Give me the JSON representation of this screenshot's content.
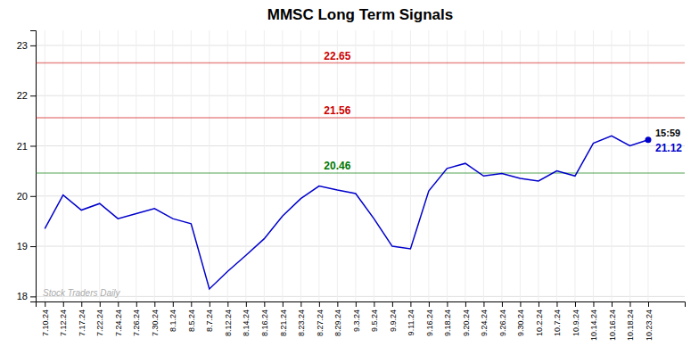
{
  "chart_data": {
    "type": "line",
    "title": "MMSC Long Term Signals",
    "categories": [
      "7.10.24",
      "7.12.24",
      "7.17.24",
      "7.22.24",
      "7.24.24",
      "7.26.24",
      "7.30.24",
      "8.1.24",
      "8.5.24",
      "8.7.24",
      "8.12.24",
      "8.14.24",
      "8.16.24",
      "8.21.24",
      "8.23.24",
      "8.27.24",
      "8.29.24",
      "9.3.24",
      "9.5.24",
      "9.9.24",
      "9.11.24",
      "9.16.24",
      "9.18.24",
      "9.20.24",
      "9.24.24",
      "9.26.24",
      "9.30.24",
      "10.2.24",
      "10.7.24",
      "10.9.24",
      "10.14.24",
      "10.16.24",
      "10.18.24",
      "10.23.24"
    ],
    "series": [
      {
        "color": "#0000cc",
        "values": [
          19.35,
          20.02,
          19.72,
          19.85,
          19.55,
          19.65,
          19.75,
          19.55,
          19.45,
          18.15,
          18.5,
          18.82,
          19.15,
          19.6,
          19.95,
          20.2,
          20.12,
          20.05,
          19.55,
          19.0,
          18.95,
          20.1,
          20.55,
          20.65,
          20.4,
          20.45,
          20.35,
          20.3,
          20.5,
          20.4,
          21.05,
          21.2,
          21.0,
          21.12
        ]
      }
    ],
    "reference_lines": [
      {
        "value": 22.65,
        "label": "22.65",
        "color": "#cc0000"
      },
      {
        "value": 21.56,
        "label": "21.56",
        "color": "#cc0000"
      },
      {
        "value": 20.46,
        "label": "20.46",
        "color": "#007700"
      }
    ],
    "annotations": [
      {
        "text": "15:59"
      },
      {
        "text": "21.12",
        "value": 21.12
      },
      {
        "text": "Stock Traders Daily"
      }
    ],
    "ylim": [
      17.9,
      23.3
    ],
    "yticks": [
      18,
      19,
      20,
      21,
      22,
      23
    ],
    "grid": true
  }
}
